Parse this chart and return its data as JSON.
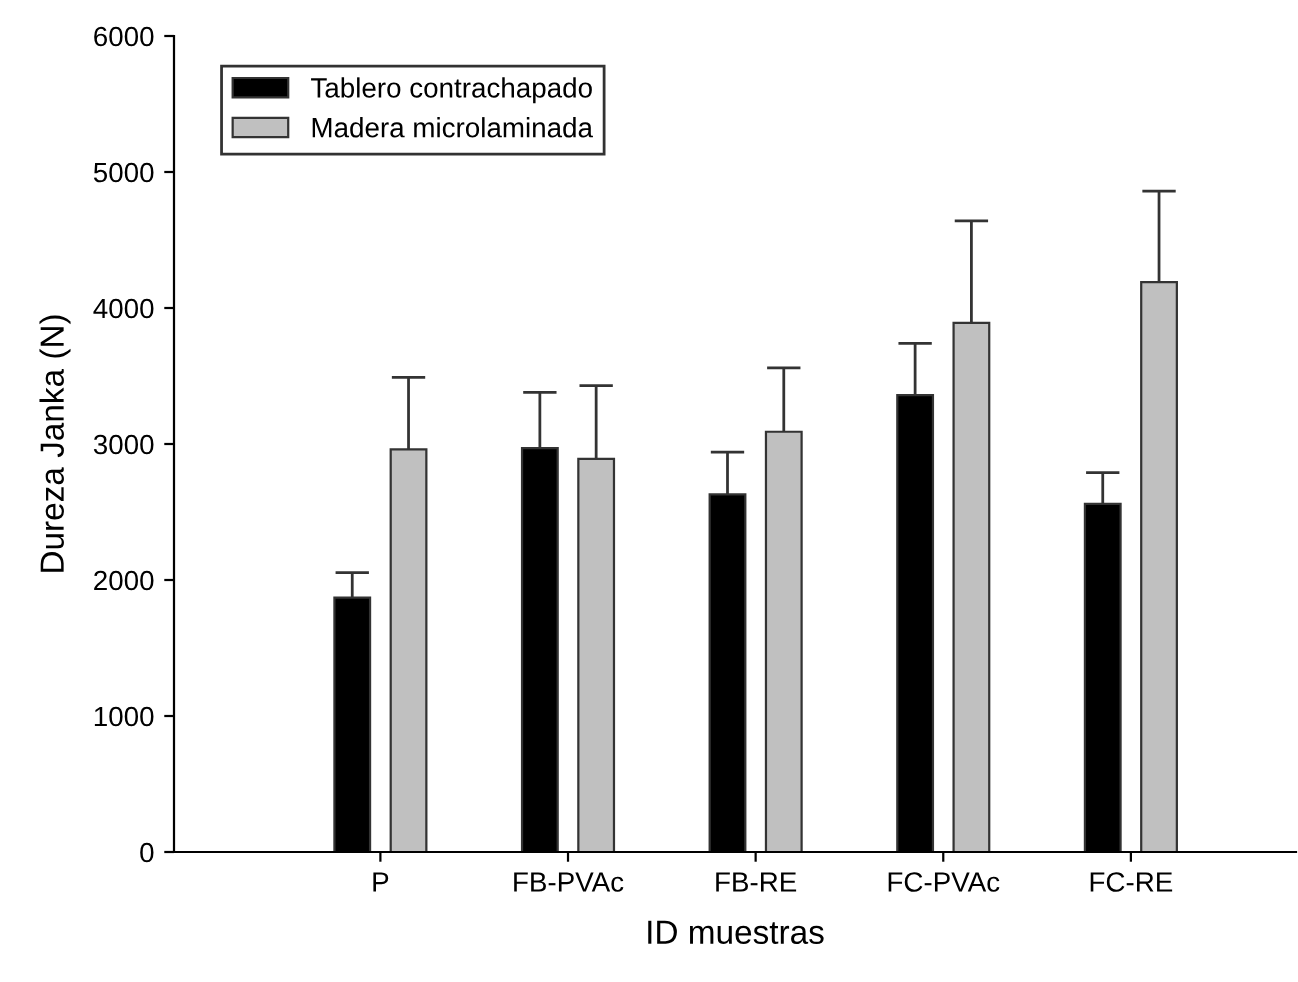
{
  "chart_data": {
    "type": "bar",
    "xlabel": "ID muestras",
    "ylabel": "Dureza Janka (N)",
    "categories": [
      "P",
      "FB-PVAc",
      "FB-RE",
      "FC-PVAc",
      "FC-RE"
    ],
    "series": [
      {
        "name": "Tablero contrachapado",
        "color": "#000000",
        "values": [
          1870,
          2970,
          2630,
          3360,
          2560
        ],
        "errors": [
          185,
          410,
          310,
          380,
          230
        ]
      },
      {
        "name": "Madera microlaminada",
        "color": "#c0c0c0",
        "values": [
          2960,
          2890,
          3090,
          3890,
          4190
        ],
        "errors": [
          530,
          540,
          470,
          750,
          670
        ]
      }
    ],
    "ylim": [
      0,
      6000
    ],
    "yticks": [
      0,
      1000,
      2000,
      3000,
      4000,
      5000,
      6000
    ],
    "grid": false,
    "legend": "top left"
  }
}
